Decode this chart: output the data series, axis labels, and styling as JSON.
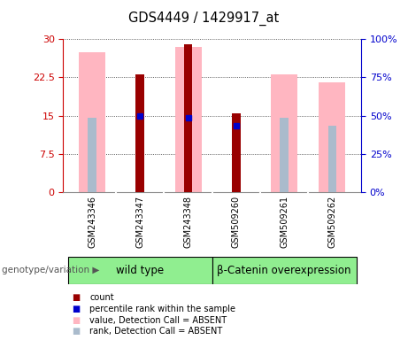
{
  "title": "GDS4449 / 1429917_at",
  "samples": [
    "GSM243346",
    "GSM243347",
    "GSM243348",
    "GSM509260",
    "GSM509261",
    "GSM509262"
  ],
  "pink_bars": [
    27.5,
    0,
    28.5,
    0,
    23.0,
    21.5
  ],
  "red_bars": [
    0,
    23.0,
    29.0,
    15.5,
    0,
    0
  ],
  "blue_dots_y": [
    14.5,
    15.0,
    14.5,
    13.0,
    14.5,
    13.0
  ],
  "blue_dots_present": [
    false,
    true,
    true,
    true,
    false,
    false
  ],
  "light_blue_bars": [
    14.5,
    0,
    14.5,
    0,
    14.5,
    13.0
  ],
  "ylim_left": [
    0,
    30
  ],
  "ylim_right": [
    0,
    100
  ],
  "yticks_left": [
    0,
    7.5,
    15,
    22.5,
    30
  ],
  "yticks_right": [
    0,
    25,
    50,
    75,
    100
  ],
  "ytick_labels_left": [
    "0",
    "7.5",
    "15",
    "22.5",
    "30"
  ],
  "ytick_labels_right": [
    "0%",
    "25%",
    "50%",
    "75%",
    "100%"
  ],
  "left_axis_color": "#cc0000",
  "right_axis_color": "#0000cc",
  "pink_bar_color": "#ffb6c1",
  "red_bar_color": "#990000",
  "blue_dot_color": "#0000cc",
  "light_blue_bar_color": "#aabbcc",
  "grid_color": "#000000",
  "bg_plot": "#ffffff",
  "bg_sample_area": "#c8c8c8",
  "bg_wildtype": "#90ee90",
  "bg_overexpr": "#90ee90",
  "genotype_label": "genotype/variation",
  "wildtype_label": "wild type",
  "overexpr_label": "β-Catenin overexpression",
  "legend_items": [
    {
      "color": "#990000",
      "label": "count"
    },
    {
      "color": "#0000cc",
      "label": "percentile rank within the sample"
    },
    {
      "color": "#ffb6c1",
      "label": "value, Detection Call = ABSENT"
    },
    {
      "color": "#aabbcc",
      "label": "rank, Detection Call = ABSENT"
    }
  ],
  "pink_bar_width": 0.55,
  "red_bar_width": 0.18,
  "blue_bar_width": 0.18
}
